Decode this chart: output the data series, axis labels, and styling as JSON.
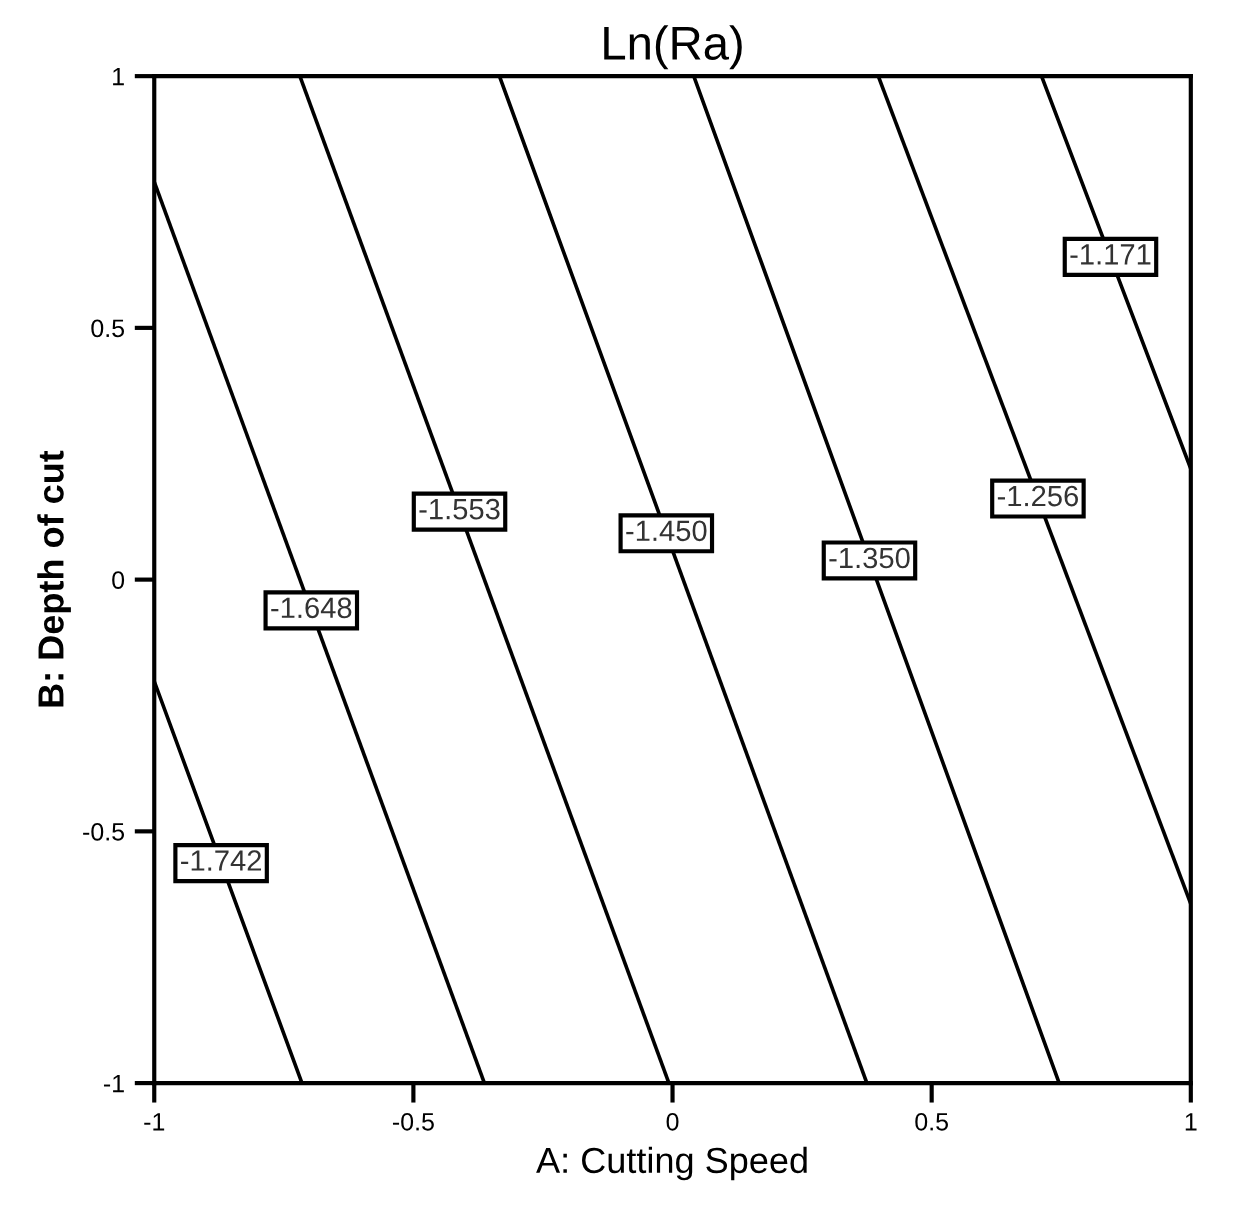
{
  "chart_data": {
    "type": "line",
    "title": "Ln(Ra)",
    "xlabel": "A: Cutting Speed",
    "ylabel": "B: Depth of cut",
    "xlim": [
      -1,
      1
    ],
    "ylim": [
      -1,
      1
    ],
    "xticks": [
      -1,
      -0.5,
      0,
      0.5,
      1
    ],
    "yticks": [
      -1,
      -0.5,
      0,
      0.5,
      1
    ],
    "grid": false,
    "legend": false,
    "marker": "none",
    "line_style": "solid",
    "series": [
      {
        "color": "#000000",
        "x": [
          -1,
          -0.715
        ],
        "values": [
          -0.202,
          -1
        ]
      },
      {
        "color": "#000000",
        "x": [
          -1,
          -0.363
        ],
        "values": [
          0.79,
          -1
        ]
      },
      {
        "color": "#000000",
        "x": [
          -0.719,
          -0.007
        ],
        "values": [
          1,
          -1
        ]
      },
      {
        "color": "#000000",
        "x": [
          -0.334,
          0.375
        ],
        "values": [
          1,
          -1
        ]
      },
      {
        "color": "#000000",
        "x": [
          0.041,
          0.746
        ],
        "values": [
          1,
          -1
        ]
      },
      {
        "color": "#000000",
        "x": [
          0.397,
          1
        ],
        "values": [
          1,
          -0.644
        ]
      },
      {
        "color": "#000000",
        "x": [
          0.712,
          1
        ],
        "values": [
          1,
          0.22
        ]
      }
    ],
    "annotations": [
      {
        "text": "-1.742",
        "x": -0.871,
        "y": -0.563
      },
      {
        "text": "-1.648",
        "x": -0.697,
        "y": -0.061
      },
      {
        "text": "-1.553",
        "x": -0.411,
        "y": 0.135
      },
      {
        "text": "-1.450",
        "x": -0.012,
        "y": 0.092
      },
      {
        "text": "-1.350",
        "x": 0.38,
        "y": 0.038
      },
      {
        "text": "-1.256",
        "x": 0.705,
        "y": 0.161
      },
      {
        "text": "-1.171",
        "x": 0.845,
        "y": 0.641
      }
    ]
  }
}
